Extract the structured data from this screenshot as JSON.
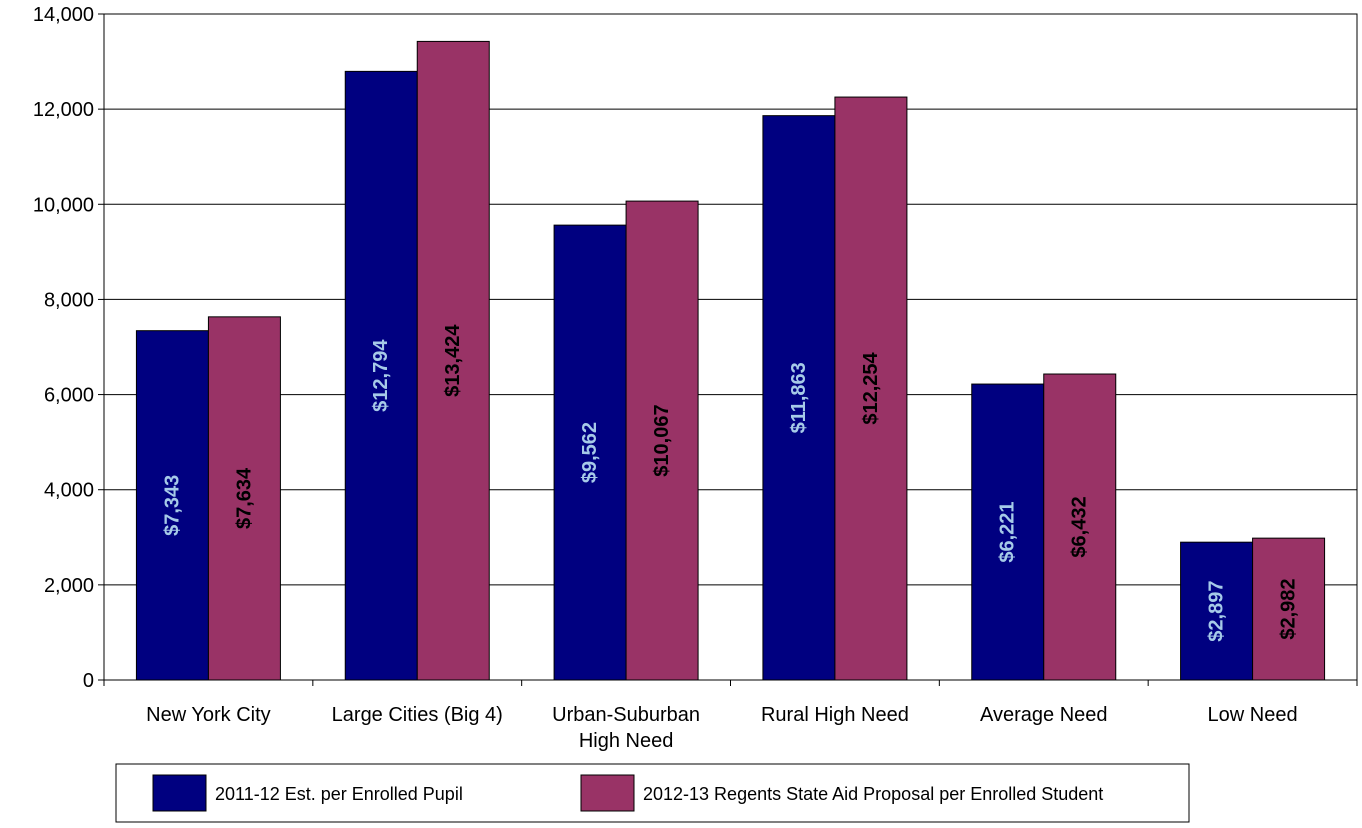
{
  "chart_data": {
    "type": "bar",
    "title": "",
    "xlabel": "",
    "ylabel": "",
    "ylim": [
      0,
      14000
    ],
    "y_ticks": [
      0,
      2000,
      4000,
      6000,
      8000,
      10000,
      12000,
      14000
    ],
    "y_tick_labels": [
      "0",
      "2,000",
      "4,000",
      "6,000",
      "8,000",
      "10,000",
      "12,000",
      "14,000"
    ],
    "grid": true,
    "legend_position": "bottom",
    "categories": [
      [
        "New York City"
      ],
      [
        "Large Cities (Big 4)"
      ],
      [
        "Urban-Suburban",
        "High Need"
      ],
      [
        "Rural High Need"
      ],
      [
        "Average Need"
      ],
      [
        "Low Need"
      ]
    ],
    "series": [
      {
        "name": "2011-12 Est. per Enrolled Pupil",
        "color": "#000080",
        "label_color": "#a6cae8",
        "values": [
          7343,
          12794,
          9562,
          11863,
          6221,
          2897
        ],
        "labels": [
          "$7,343",
          "$12,794",
          "$9,562",
          "$11,863",
          "$6,221",
          "$2,897"
        ]
      },
      {
        "name": "2012-13 Regents State Aid Proposal per Enrolled Student",
        "color": "#993366",
        "label_color": "#000000",
        "values": [
          7634,
          13424,
          10067,
          12254,
          6432,
          2982
        ],
        "labels": [
          "$7,634",
          "$13,424",
          "$10,067",
          "$12,254",
          "$6,432",
          "$2,982"
        ]
      }
    ]
  }
}
